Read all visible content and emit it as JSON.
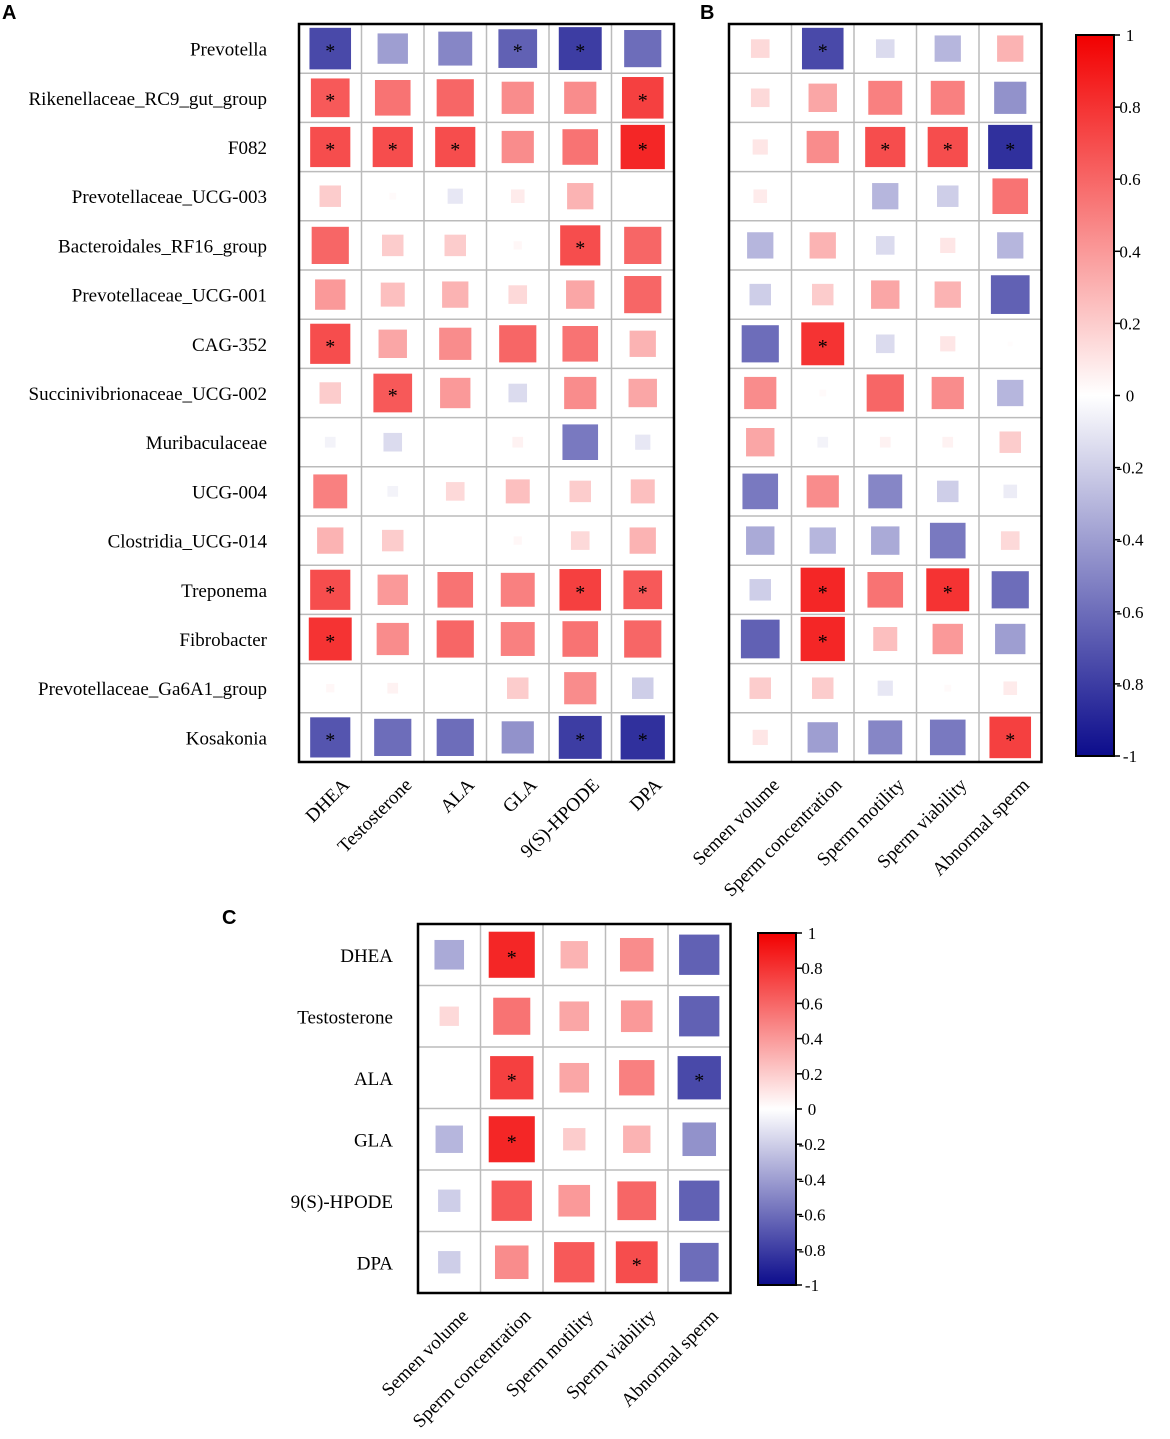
{
  "colors": {
    "negative": "#0c0c8c",
    "zero": "#ffffff",
    "positive": "#f20000",
    "grid": "#bbbbbb",
    "frame": "#000000"
  },
  "chart_data": [
    {
      "id": "A",
      "type": "heatmap",
      "panel_label": "A",
      "rows": [
        "Prevotella",
        "Rikenellaceae_RC9_gut_group",
        "F082",
        "Prevotellaceae_UCG-003",
        "Bacteroidales_RF16_group",
        "Prevotellaceae_UCG-001",
        "CAG-352",
        "Succinivibrionaceae_UCG-002",
        "Muribaculaceae",
        "UCG-004",
        "Clostridia_UCG-014",
        "Treponema",
        "Fibrobacter",
        "Prevotellaceae_Ga6A1_group",
        "Kosakonia"
      ],
      "columns": [
        "DHEA",
        "Testosterone",
        "ALA",
        "GLA",
        "9(S)-HPODE",
        "DPA"
      ],
      "values": [
        [
          -0.75,
          -0.4,
          -0.5,
          -0.65,
          -0.8,
          -0.6
        ],
        [
          0.65,
          0.55,
          0.6,
          0.45,
          0.45,
          0.75
        ],
        [
          0.7,
          0.7,
          0.7,
          0.45,
          0.55,
          0.85
        ],
        [
          0.2,
          0.02,
          -0.1,
          0.08,
          0.3,
          0.0
        ],
        [
          0.6,
          0.2,
          0.2,
          0.03,
          0.7,
          0.6
        ],
        [
          0.4,
          0.25,
          0.3,
          0.15,
          0.35,
          0.6
        ],
        [
          0.7,
          0.35,
          0.45,
          0.6,
          0.55,
          0.3
        ],
        [
          0.2,
          0.65,
          0.4,
          -0.15,
          0.45,
          0.35
        ],
        [
          -0.05,
          -0.15,
          0.0,
          0.05,
          -0.55,
          -0.1
        ],
        [
          0.5,
          -0.05,
          0.15,
          0.25,
          0.2,
          0.25
        ],
        [
          0.3,
          0.2,
          0.0,
          0.03,
          0.15,
          0.3
        ],
        [
          0.7,
          0.4,
          0.55,
          0.5,
          0.75,
          0.65
        ],
        [
          0.8,
          0.45,
          0.6,
          0.5,
          0.55,
          0.6
        ],
        [
          0.03,
          0.05,
          0.0,
          0.2,
          0.45,
          -0.2
        ],
        [
          -0.7,
          -0.6,
          -0.6,
          -0.45,
          -0.8,
          -0.85
        ]
      ],
      "significant": [
        [
          1,
          0,
          0,
          1,
          1,
          0
        ],
        [
          1,
          0,
          0,
          0,
          0,
          1
        ],
        [
          1,
          1,
          1,
          0,
          0,
          1
        ],
        [
          0,
          0,
          0,
          0,
          0,
          0
        ],
        [
          0,
          0,
          0,
          0,
          1,
          0
        ],
        [
          0,
          0,
          0,
          0,
          0,
          0
        ],
        [
          1,
          0,
          0,
          0,
          0,
          0
        ],
        [
          0,
          1,
          0,
          0,
          0,
          0
        ],
        [
          0,
          0,
          0,
          0,
          0,
          0
        ],
        [
          0,
          0,
          0,
          0,
          0,
          0
        ],
        [
          0,
          0,
          0,
          0,
          0,
          0
        ],
        [
          1,
          0,
          0,
          0,
          1,
          1
        ],
        [
          1,
          0,
          0,
          0,
          0,
          0
        ],
        [
          0,
          0,
          0,
          0,
          0,
          0
        ],
        [
          1,
          0,
          0,
          0,
          1,
          1
        ]
      ],
      "star_symbol": "*",
      "range": [
        -1,
        1
      ]
    },
    {
      "id": "B",
      "type": "heatmap",
      "panel_label": "B",
      "rows": [
        "Prevotella",
        "Rikenellaceae_RC9_gut_group",
        "F082",
        "Prevotellaceae_UCG-003",
        "Bacteroidales_RF16_group",
        "Prevotellaceae_UCG-001",
        "CAG-352",
        "Succinivibrionaceae_UCG-002",
        "Muribaculaceae",
        "UCG-004",
        "Clostridia_UCG-014",
        "Treponema",
        "Fibrobacter",
        "Prevotellaceae_Ga6A1_group",
        "Kosakonia"
      ],
      "columns": [
        "Semen volume",
        "Sperm concentration",
        "Sperm motility",
        "Sperm viability",
        "Abnormal sperm"
      ],
      "values": [
        [
          0.15,
          -0.75,
          -0.15,
          -0.3,
          0.3
        ],
        [
          0.15,
          0.35,
          0.5,
          0.5,
          -0.45
        ],
        [
          0.1,
          0.45,
          0.7,
          0.7,
          -0.85
        ],
        [
          0.08,
          0.0,
          -0.3,
          -0.2,
          0.55
        ],
        [
          -0.3,
          0.3,
          -0.15,
          0.1,
          -0.3
        ],
        [
          -0.2,
          0.2,
          0.35,
          0.3,
          -0.65
        ],
        [
          -0.6,
          0.8,
          -0.15,
          0.1,
          0.01
        ],
        [
          0.45,
          0.02,
          0.6,
          0.45,
          -0.3
        ],
        [
          0.35,
          -0.05,
          0.05,
          0.05,
          0.2
        ],
        [
          -0.55,
          0.45,
          -0.5,
          -0.2,
          -0.08
        ],
        [
          -0.35,
          -0.3,
          -0.35,
          -0.55,
          0.15
        ],
        [
          -0.2,
          0.85,
          0.55,
          0.8,
          -0.6
        ],
        [
          -0.65,
          0.85,
          0.25,
          0.4,
          -0.4
        ],
        [
          0.2,
          0.2,
          -0.1,
          0.02,
          0.08
        ],
        [
          0.1,
          -0.4,
          -0.5,
          -0.55,
          0.75
        ]
      ],
      "significant": [
        [
          0,
          1,
          0,
          0,
          0
        ],
        [
          0,
          0,
          0,
          0,
          0
        ],
        [
          0,
          0,
          1,
          1,
          1
        ],
        [
          0,
          0,
          0,
          0,
          0
        ],
        [
          0,
          0,
          0,
          0,
          0
        ],
        [
          0,
          0,
          0,
          0,
          0
        ],
        [
          0,
          1,
          0,
          0,
          0
        ],
        [
          0,
          0,
          0,
          0,
          0
        ],
        [
          0,
          0,
          0,
          0,
          0
        ],
        [
          0,
          0,
          0,
          0,
          0
        ],
        [
          0,
          0,
          0,
          0,
          0
        ],
        [
          0,
          1,
          0,
          1,
          0
        ],
        [
          0,
          1,
          0,
          0,
          0
        ],
        [
          0,
          0,
          0,
          0,
          0
        ],
        [
          0,
          0,
          0,
          0,
          1
        ]
      ],
      "star_symbol": "*",
      "range": [
        -1,
        1
      ],
      "colorbar": {
        "ticks": [
          1,
          0.8,
          0.6,
          0.4,
          0.2,
          0,
          -0.2,
          -0.4,
          -0.6,
          -0.8,
          -1
        ],
        "tick_labels": [
          "1",
          "0.8",
          "0.6",
          "0.4",
          "0.2",
          "0",
          "-0.2",
          "-0.4",
          "-0.6",
          "-0.8",
          "-1"
        ]
      }
    },
    {
      "id": "C",
      "type": "heatmap",
      "panel_label": "C",
      "rows": [
        "DHEA",
        "Testosterone",
        "ALA",
        "GLA",
        "9(S)-HPODE",
        "DPA"
      ],
      "columns": [
        "Semen volume",
        "Sperm concentration",
        "Sperm motility",
        "Sperm viability",
        "Abnormal sperm"
      ],
      "values": [
        [
          -0.35,
          0.85,
          0.3,
          0.45,
          -0.65
        ],
        [
          0.15,
          0.55,
          0.35,
          0.4,
          -0.65
        ],
        [
          0.0,
          0.75,
          0.35,
          0.5,
          -0.75
        ],
        [
          -0.3,
          0.85,
          0.2,
          0.3,
          -0.45
        ],
        [
          -0.2,
          0.65,
          0.4,
          0.6,
          -0.65
        ],
        [
          -0.2,
          0.45,
          0.65,
          0.7,
          -0.6
        ]
      ],
      "significant": [
        [
          0,
          1,
          0,
          0,
          0
        ],
        [
          0,
          0,
          0,
          0,
          0
        ],
        [
          0,
          1,
          0,
          0,
          1
        ],
        [
          0,
          1,
          0,
          0,
          0
        ],
        [
          0,
          0,
          0,
          0,
          0
        ],
        [
          0,
          0,
          0,
          1,
          0
        ]
      ],
      "star_symbol": "*",
      "range": [
        -1,
        1
      ],
      "colorbar": {
        "ticks": [
          1,
          0.8,
          0.6,
          0.4,
          0.2,
          0,
          -0.2,
          -0.4,
          -0.6,
          -0.8,
          -1
        ],
        "tick_labels": [
          "1",
          "0.8",
          "0.6",
          "0.4",
          "0.2",
          "0",
          "-0.2",
          "-0.4",
          "-0.6",
          "-0.8",
          "-1"
        ]
      }
    }
  ]
}
